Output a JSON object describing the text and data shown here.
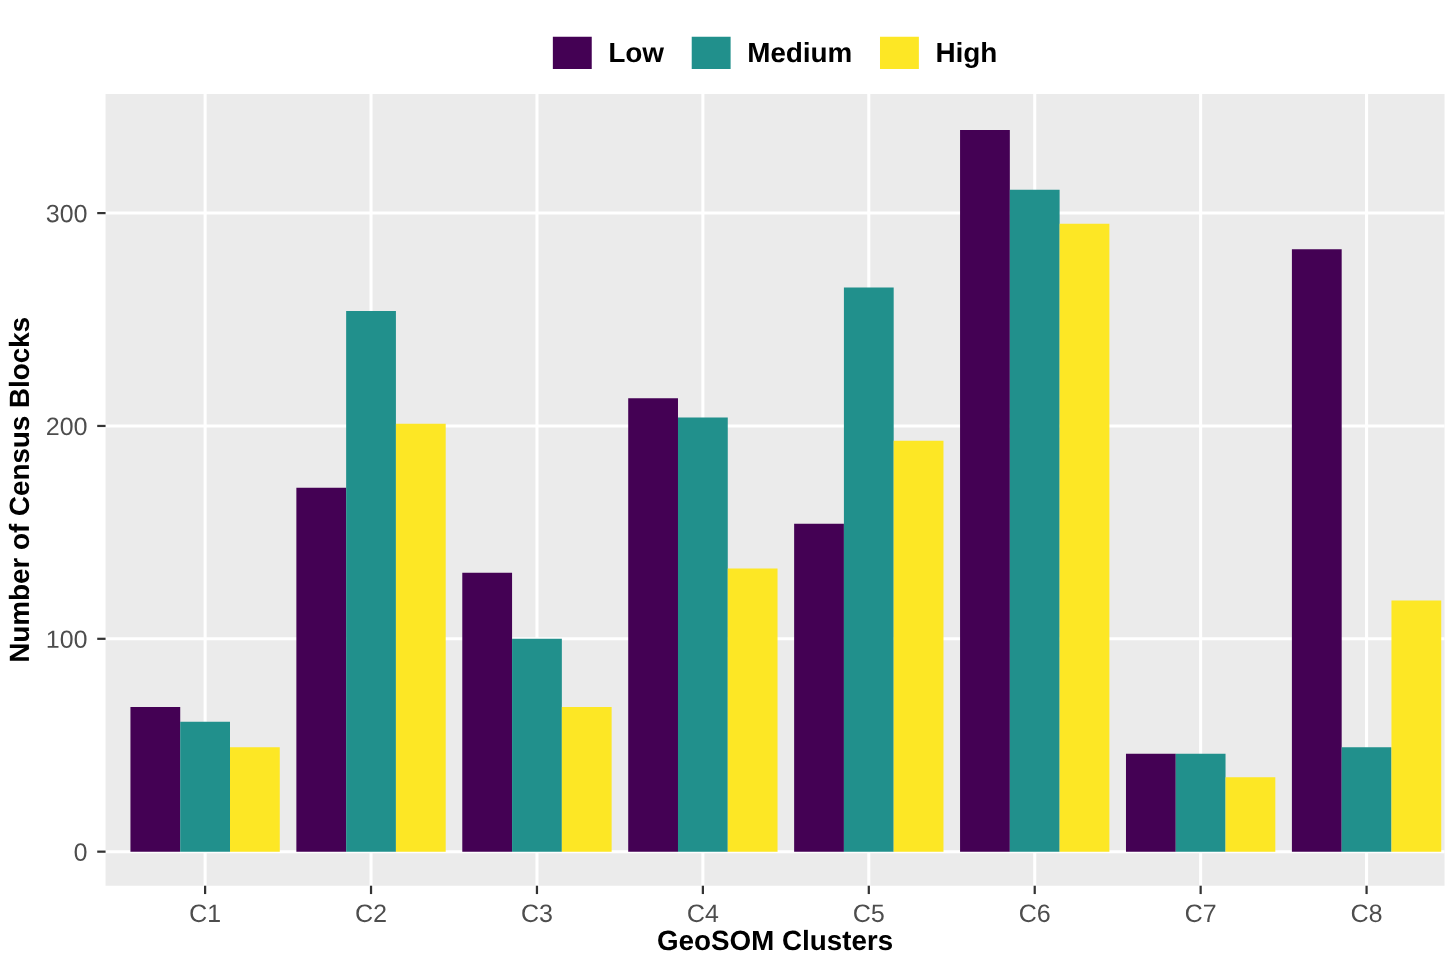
{
  "chart_data": {
    "type": "bar",
    "xlabel": "GeoSOM Clusters",
    "ylabel": "Number of Census Blocks",
    "categories": [
      "C1",
      "C2",
      "C3",
      "C4",
      "C5",
      "C6",
      "C7",
      "C8"
    ],
    "series": [
      {
        "name": "Low",
        "color": "#440154",
        "values": [
          68,
          171,
          131,
          213,
          154,
          339,
          46,
          283
        ]
      },
      {
        "name": "Medium",
        "color": "#21908c",
        "values": [
          61,
          254,
          100,
          204,
          265,
          311,
          46,
          49
        ]
      },
      {
        "name": "High",
        "color": "#fde725",
        "values": [
          49,
          201,
          68,
          133,
          193,
          295,
          35,
          118
        ]
      }
    ],
    "ylim": [
      -16,
      356
    ],
    "yticks": [
      0,
      100,
      200,
      300
    ],
    "grid": true,
    "legend": "top"
  }
}
